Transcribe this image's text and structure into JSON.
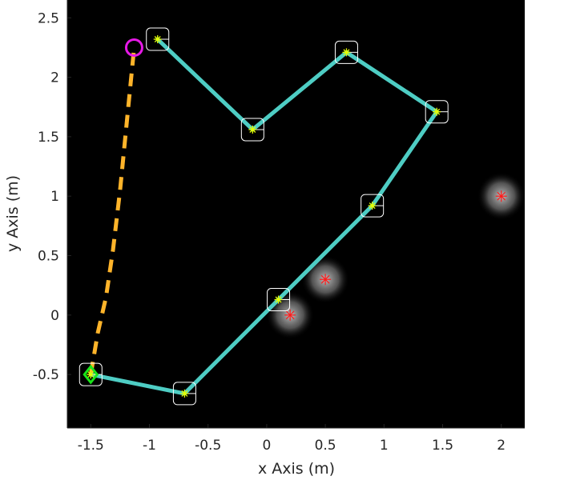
{
  "chart_data": {
    "type": "line",
    "xlabel": "x Axis (m)",
    "ylabel": "y Axis (m)",
    "xlim": [
      -1.7,
      2.2
    ],
    "ylim": [
      -0.95,
      2.65
    ],
    "xticks": [
      -1.5,
      -1,
      -0.5,
      0,
      0.5,
      1,
      1.5,
      2
    ],
    "xtick_labels": [
      "-1.5",
      "-1",
      "-0.5",
      "0",
      "0.5",
      "1",
      "1.5",
      "2"
    ],
    "yticks": [
      -0.5,
      0,
      0.5,
      1,
      1.5,
      2,
      2.5
    ],
    "ytick_labels": [
      "-0.5",
      "0",
      "0.5",
      "1",
      "1.5",
      "2",
      "2.5"
    ],
    "grid": false,
    "legend": "none",
    "colors": {
      "background": "#000000",
      "path": "#4ecdc4",
      "planned_path": "#ffb42a",
      "waypoint_marker": "#e6ff00",
      "waypoint_box": "#ffffff",
      "obstacle": "#ff1a1a",
      "start": "#19e619",
      "goal": "#e619e6"
    },
    "series": [
      {
        "role": "path",
        "x": [
          -1.5,
          -0.7,
          0.1,
          0.9,
          1.45,
          0.68,
          -0.12,
          -0.93
        ],
        "y": [
          -0.5,
          -0.66,
          0.13,
          0.92,
          1.71,
          2.21,
          1.56,
          2.32
        ]
      },
      {
        "role": "planned_path",
        "x": [
          -1.5,
          -1.44,
          -1.37,
          -1.31,
          -1.25,
          -1.19,
          -1.13
        ],
        "y": [
          -0.5,
          -0.15,
          0.15,
          0.55,
          1.05,
          1.65,
          2.25
        ]
      }
    ],
    "waypoints": {
      "x": [
        -1.5,
        -0.7,
        0.1,
        0.9,
        1.45,
        0.68,
        -0.12,
        -0.93
      ],
      "y": [
        -0.5,
        -0.66,
        0.13,
        0.92,
        1.71,
        2.21,
        1.56,
        2.32
      ]
    },
    "obstacles": {
      "x": [
        2.0,
        0.5,
        0.2
      ],
      "y": [
        1.0,
        0.3,
        0.0
      ]
    },
    "start": {
      "x": -1.5,
      "y": -0.5
    },
    "goal": {
      "x": -1.13,
      "y": 2.25
    }
  }
}
